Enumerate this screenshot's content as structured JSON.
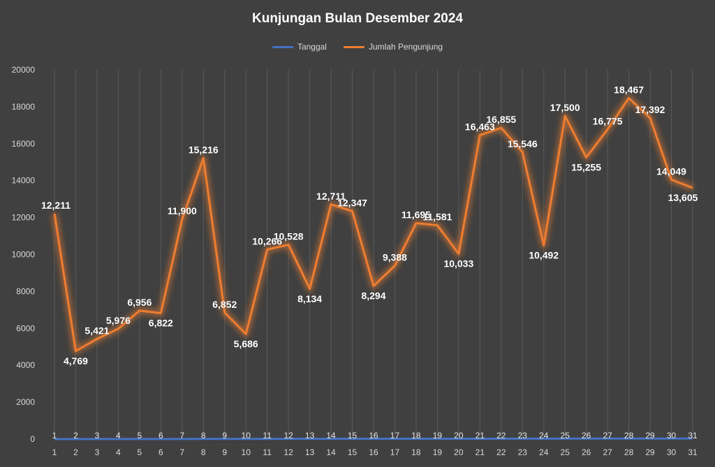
{
  "chart_data": {
    "type": "line",
    "title": "Kunjungan Bulan Desember 2024",
    "categories": [
      "1",
      "2",
      "3",
      "4",
      "5",
      "6",
      "7",
      "8",
      "9",
      "10",
      "11",
      "12",
      "13",
      "14",
      "15",
      "16",
      "17",
      "18",
      "19",
      "20",
      "21",
      "22",
      "23",
      "24",
      "25",
      "26",
      "27",
      "28",
      "29",
      "30",
      "31"
    ],
    "series": [
      {
        "name": "Tanggal",
        "color": "#4472c4",
        "values": [
          1,
          2,
          3,
          4,
          5,
          6,
          7,
          8,
          9,
          10,
          11,
          12,
          13,
          14,
          15,
          16,
          17,
          18,
          19,
          20,
          21,
          22,
          23,
          24,
          25,
          26,
          27,
          28,
          29,
          30,
          31
        ]
      },
      {
        "name": "Jumlah Pengunjung",
        "color": "#ed7d31",
        "values": [
          12211,
          4769,
          5421,
          5976,
          6956,
          6822,
          11900,
          15216,
          6852,
          5686,
          10266,
          10528,
          8134,
          12711,
          12347,
          8294,
          9388,
          11695,
          11581,
          10033,
          16463,
          16855,
          15546,
          10492,
          17500,
          15255,
          16775,
          18467,
          17392,
          14049,
          13605
        ],
        "labels": [
          "12,211",
          "4,769",
          "5,421",
          "5,976",
          "6,956",
          "6,822",
          "11,900",
          "15,216",
          "6,852",
          "5,686",
          "10,266",
          "10,528",
          "8,134",
          "12,711",
          "12,347",
          "8,294",
          "9,388",
          "11,695",
          "11,581",
          "10,033",
          "16,463",
          "16,855",
          "15,546",
          "10,492",
          "17,500",
          "15,255",
          "16,775",
          "18,467",
          "17,392",
          "14,049",
          "13,605"
        ]
      }
    ],
    "ylim": [
      0,
      20000
    ],
    "yticks": [
      "0",
      "2000",
      "4000",
      "6000",
      "8000",
      "10000",
      "12000",
      "14000",
      "16000",
      "18000",
      "20000"
    ],
    "xlabel": "",
    "ylabel": "",
    "grid": "vertical",
    "legend": "top"
  }
}
